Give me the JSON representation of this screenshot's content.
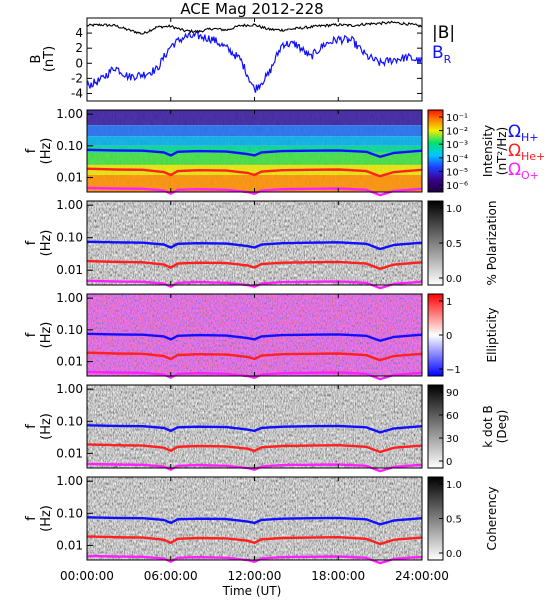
{
  "title": "ACE Mag 2012-228",
  "xaxis": {
    "label": "Time (UT)",
    "ticks": [
      "00:00:00",
      "06:00:00",
      "12:00:00",
      "18:00:00",
      "24:00:00"
    ],
    "range_hours": [
      0,
      24
    ]
  },
  "legend_top": {
    "b_total": "|B|",
    "b_r": "B",
    "b_r_sub": "R"
  },
  "legend_freqs": [
    {
      "symbol": "Ω",
      "sub": "H+",
      "color": "#1010ff"
    },
    {
      "symbol": "Ω",
      "sub": "He+",
      "color": "#ff2020"
    },
    {
      "symbol": "Ω",
      "sub": "O+",
      "color": "#ff20ff"
    }
  ],
  "colors": {
    "b_total": "#000000",
    "b_r": "#1010ff",
    "h_plus": "#1010ff",
    "he_plus": "#ff2020",
    "o_plus": "#ff20ff"
  },
  "panel_ylabel": {
    "f": "f",
    "hz": "(Hz)"
  },
  "chart_data": [
    {
      "type": "line",
      "ylabel": "B (nT)",
      "ylabel_top": "B",
      "ylabel_bot": "(nT)",
      "ylim": [
        -5,
        6
      ],
      "yticks": [
        "4",
        "2",
        "0",
        "-2",
        "-4"
      ],
      "x_hours": [
        0,
        1,
        2,
        3,
        4,
        5,
        6,
        7,
        8,
        9,
        10,
        11,
        12,
        13,
        14,
        15,
        16,
        17,
        18,
        19,
        20,
        21,
        22,
        23,
        24
      ],
      "series": [
        {
          "name": "|B|",
          "values": [
            5.0,
            5.1,
            5.0,
            4.4,
            3.9,
            4.8,
            4.9,
            4.3,
            4.2,
            4.6,
            4.4,
            5.0,
            5.1,
            4.5,
            4.4,
            4.6,
            4.8,
            5.0,
            5.1,
            5.0,
            5.2,
            5.3,
            5.4,
            5.2,
            4.9
          ]
        },
        {
          "name": "BR",
          "values": [
            -3.0,
            -2.2,
            -0.5,
            -1.8,
            -1.5,
            -0.8,
            2.3,
            3.5,
            3.6,
            3.2,
            2.0,
            0.5,
            -3.5,
            -1.5,
            2.6,
            2.5,
            0.8,
            2.5,
            3.2,
            3.0,
            1.0,
            0.0,
            0.5,
            0.8,
            0.2
          ]
        }
      ]
    },
    {
      "type": "heatmap",
      "name": "intensity",
      "ylabel": "f (Hz)",
      "yticks": [
        "1.00",
        "0.10",
        "0.01"
      ],
      "colorbar_label": "Intensity (nT²/Hz)",
      "colorbar_label_top": "Intensity",
      "colorbar_label_bot": "(nT²/Hz)",
      "colorbar_ticks": [
        "10⁻¹",
        "10⁻²",
        "10⁻³",
        "10⁻⁴",
        "10⁻⁵",
        "10⁻⁶"
      ]
    },
    {
      "type": "heatmap",
      "name": "polarization",
      "ylabel": "f (Hz)",
      "yticks": [
        "1.00",
        "0.10",
        "0.01"
      ],
      "colorbar_label": "% Polarization",
      "colorbar_ticks": [
        "1.0",
        "0.5",
        "0.0"
      ]
    },
    {
      "type": "heatmap",
      "name": "ellipticity",
      "ylabel": "f (Hz)",
      "yticks": [
        "1.00",
        "0.10",
        "0.01"
      ],
      "colorbar_label": "Ellipticity",
      "colorbar_ticks": [
        "1",
        "0",
        "−1"
      ]
    },
    {
      "type": "heatmap",
      "name": "k-dot-b",
      "ylabel": "f (Hz)",
      "yticks": [
        "1.00",
        "0.10",
        "0.01"
      ],
      "colorbar_label": "k dot B (Deg)",
      "colorbar_label_top": "k dot B",
      "colorbar_label_bot": "(Deg)",
      "colorbar_ticks": [
        "90",
        "60",
        "30",
        "0"
      ]
    },
    {
      "type": "heatmap",
      "name": "coherency",
      "ylabel": "f (Hz)",
      "yticks": [
        "1.00",
        "0.10",
        "0.01"
      ],
      "colorbar_label": "Coherency",
      "colorbar_ticks": [
        "1.0",
        "0.5",
        "0.0"
      ]
    }
  ],
  "gyrofrequency_hz": {
    "x_hours": [
      0,
      2,
      4,
      5.5,
      6,
      6.5,
      8,
      10,
      11.5,
      12,
      12.5,
      14,
      16,
      18,
      20,
      21,
      22,
      24
    ],
    "h_plus": [
      0.075,
      0.072,
      0.07,
      0.062,
      0.05,
      0.065,
      0.068,
      0.066,
      0.055,
      0.05,
      0.062,
      0.068,
      0.07,
      0.072,
      0.065,
      0.045,
      0.06,
      0.07
    ],
    "he_plus": [
      0.019,
      0.018,
      0.0175,
      0.015,
      0.012,
      0.016,
      0.017,
      0.0165,
      0.014,
      0.012,
      0.0155,
      0.017,
      0.0175,
      0.018,
      0.016,
      0.011,
      0.015,
      0.0175
    ],
    "o_plus": [
      0.0047,
      0.0045,
      0.0044,
      0.0039,
      0.0031,
      0.0041,
      0.0043,
      0.0041,
      0.0035,
      0.0031,
      0.0039,
      0.0043,
      0.0044,
      0.0045,
      0.0041,
      0.0028,
      0.0038,
      0.0044
    ]
  }
}
